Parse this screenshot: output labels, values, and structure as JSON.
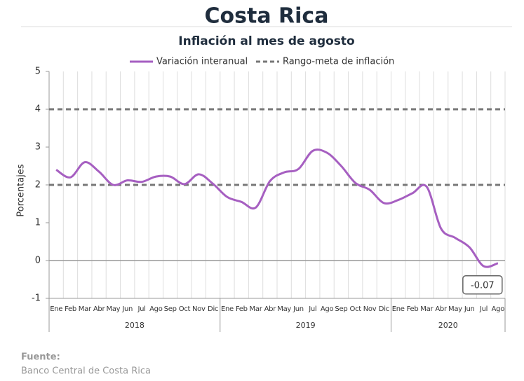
{
  "chart_data": {
    "type": "line",
    "title": "Costa Rica",
    "subtitle": "Inflación al mes de agosto",
    "y_label": "Porcentajes",
    "categories": [
      "Ene",
      "Feb",
      "Mar",
      "Abr",
      "May",
      "Jun",
      "Jul",
      "Ago",
      "Sep",
      "Oct",
      "Nov",
      "Dic",
      "Ene",
      "Feb",
      "Mar",
      "Abr",
      "May",
      "Jun",
      "Jul",
      "Ago",
      "Sep",
      "Oct",
      "Nov",
      "Dic",
      "Ene",
      "Feb",
      "Mar",
      "Abr",
      "May",
      "Jun",
      "Jul",
      "Ago"
    ],
    "groups": [
      "2018",
      "2019",
      "2020"
    ],
    "series": [
      {
        "name": "Variación interanual",
        "color": "#a65fc1",
        "values": [
          2.4,
          2.2,
          2.6,
          2.35,
          2.0,
          2.12,
          2.08,
          2.22,
          2.22,
          2.02,
          2.28,
          2.03,
          1.68,
          1.55,
          1.4,
          2.1,
          2.33,
          2.42,
          2.9,
          2.85,
          2.5,
          2.05,
          1.87,
          1.52,
          1.6,
          1.78,
          1.95,
          0.85,
          0.6,
          0.35,
          -0.15,
          -0.07
        ]
      }
    ],
    "target_range": {
      "name": "Rango-meta de inflación",
      "color": "#777777",
      "values": [
        2,
        4
      ]
    },
    "ylim": [
      -1,
      5
    ],
    "yticks": [
      -1,
      0,
      1,
      2,
      3,
      4,
      5
    ],
    "grid": true
  },
  "source": {
    "label": "Fuente:",
    "text": "Banco Central de Costa Rica"
  }
}
